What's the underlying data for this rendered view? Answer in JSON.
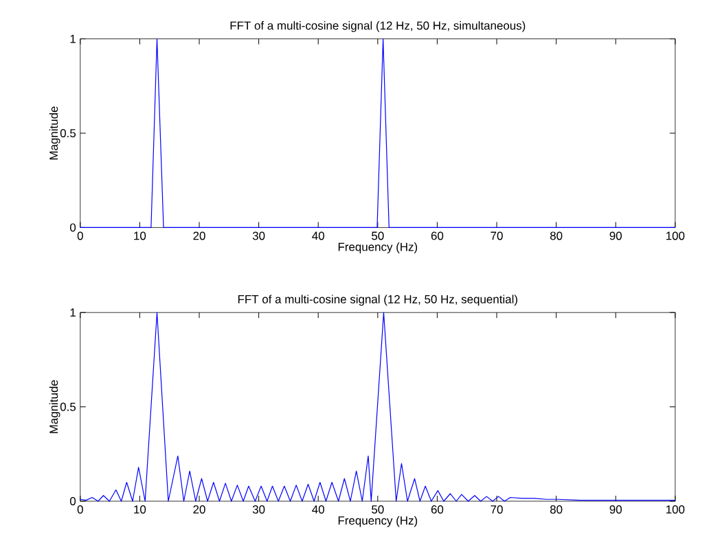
{
  "chart_data": [
    {
      "type": "line",
      "title": "FFT of a multi-cosine signal (12 Hz, 50 Hz, simultaneous)",
      "xlabel": "Frequency (Hz)",
      "ylabel": "Magnitude",
      "xlim": [
        0,
        100
      ],
      "ylim": [
        0,
        1
      ],
      "xticks": [
        0,
        10,
        20,
        30,
        40,
        50,
        60,
        70,
        80,
        90,
        100
      ],
      "yticks": [
        0,
        0.5,
        1
      ],
      "series": [
        {
          "color": "#0000ff",
          "x": [
            0,
            11.9,
            12.9,
            14.0,
            49.9,
            50.9,
            51.9,
            100
          ],
          "values": [
            0,
            0,
            1,
            0,
            0,
            1,
            0,
            0
          ]
        }
      ]
    },
    {
      "type": "line",
      "title": "FFT of a multi-cosine signal (12 Hz, 50 Hz, sequential)",
      "xlabel": "Frequency (Hz)",
      "ylabel": "Magnitude",
      "xlim": [
        0,
        100
      ],
      "ylim": [
        0,
        1
      ],
      "xticks": [
        0,
        10,
        20,
        30,
        40,
        50,
        60,
        70,
        80,
        90,
        100
      ],
      "yticks": [
        0,
        0.5,
        1
      ],
      "series": [
        {
          "color": "#0000ff",
          "x": [
            0,
            1.0,
            2.0,
            3.0,
            3.9,
            4.9,
            6.0,
            6.9,
            7.8,
            8.8,
            9.8,
            10.9,
            12.9,
            14.8,
            16.4,
            17.4,
            18.4,
            19.4,
            20.4,
            21.4,
            22.4,
            23.4,
            24.4,
            25.4,
            26.4,
            27.4,
            28.3,
            29.4,
            30.4,
            31.4,
            32.3,
            33.3,
            34.3,
            35.3,
            36.3,
            37.3,
            38.3,
            39.3,
            40.3,
            41.3,
            42.3,
            43.4,
            44.4,
            45.4,
            46.4,
            47.4,
            48.4,
            48.9,
            51.0,
            53.1,
            54.0,
            55.0,
            56.2,
            57.1,
            58.0,
            59.0,
            60.1,
            61.1,
            62.2,
            63.2,
            64.1,
            65.2,
            66.3,
            67.3,
            68.3,
            69.3,
            70.3,
            71.3,
            72.3,
            74.3,
            76.3,
            78.3,
            80.3,
            84,
            88,
            92,
            96,
            100
          ],
          "values": [
            0.01,
            0.005,
            0.02,
            0,
            0.03,
            0,
            0.06,
            0,
            0.1,
            0,
            0.18,
            0,
            1,
            0,
            0.24,
            0,
            0.16,
            0,
            0.12,
            0,
            0.1,
            0,
            0.095,
            0,
            0.085,
            0,
            0.08,
            0,
            0.08,
            0,
            0.08,
            0,
            0.08,
            0,
            0.085,
            0,
            0.09,
            0,
            0.1,
            0,
            0.1,
            0,
            0.12,
            0,
            0.16,
            0,
            0.24,
            0,
            1,
            0,
            0.2,
            0,
            0.12,
            0,
            0.08,
            0,
            0.056,
            0,
            0.04,
            0,
            0.036,
            0,
            0.03,
            0,
            0.025,
            0,
            0.025,
            0,
            0.02,
            0.015,
            0.015,
            0.01,
            0.01,
            0.005,
            0.005,
            0.005,
            0.005,
            0.005
          ]
        }
      ]
    }
  ]
}
